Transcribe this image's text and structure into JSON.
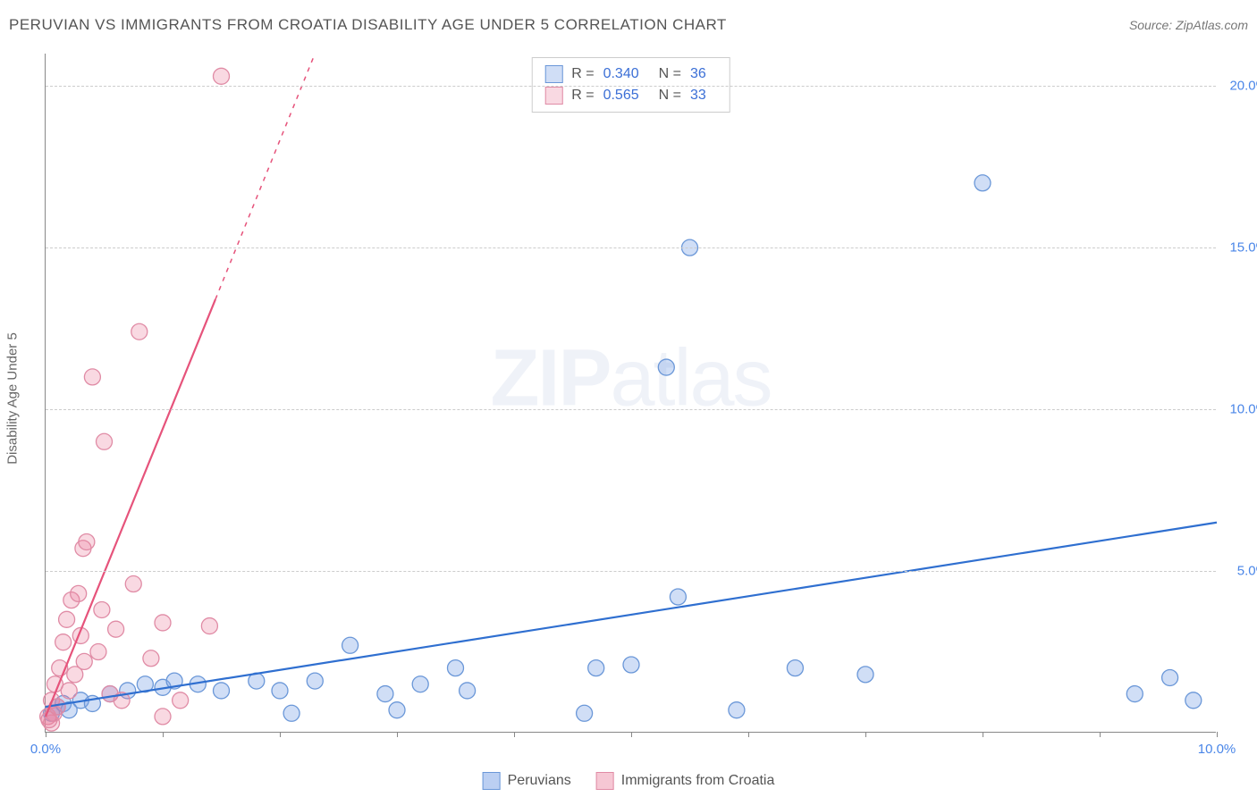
{
  "header": {
    "title": "PERUVIAN VS IMMIGRANTS FROM CROATIA DISABILITY AGE UNDER 5 CORRELATION CHART",
    "source": "Source: ZipAtlas.com"
  },
  "chart": {
    "type": "scatter",
    "watermark": "ZIPatlas",
    "y_axis_label": "Disability Age Under 5",
    "background_color": "#ffffff",
    "grid_color": "#cccccc",
    "axis_color": "#888888",
    "xlim": [
      0,
      10
    ],
    "ylim": [
      0,
      21
    ],
    "x_ticks": [
      0,
      1,
      2,
      3,
      4,
      5,
      6,
      7,
      8,
      9,
      10
    ],
    "x_tick_labels": {
      "0": "0.0%",
      "10": "10.0%"
    },
    "y_ticks": [
      5,
      10,
      15,
      20
    ],
    "y_tick_labels": {
      "5": "5.0%",
      "10": "10.0%",
      "15": "15.0%",
      "20": "20.0%"
    },
    "marker_radius": 9,
    "series": [
      {
        "name": "Peruvians",
        "color_fill": "rgba(120,160,230,0.35)",
        "color_stroke": "#6a97d8",
        "line_color": "#2f6fd0",
        "line_width": 2.2,
        "R": "0.340",
        "N": "36",
        "trend": {
          "x1": 0,
          "y1": 0.8,
          "x2": 10,
          "y2": 6.5
        },
        "points": [
          {
            "x": 0.05,
            "y": 0.6
          },
          {
            "x": 0.1,
            "y": 0.8
          },
          {
            "x": 0.15,
            "y": 0.9
          },
          {
            "x": 0.2,
            "y": 0.7
          },
          {
            "x": 0.3,
            "y": 1.0
          },
          {
            "x": 0.4,
            "y": 0.9
          },
          {
            "x": 0.55,
            "y": 1.2
          },
          {
            "x": 0.7,
            "y": 1.3
          },
          {
            "x": 0.85,
            "y": 1.5
          },
          {
            "x": 1.0,
            "y": 1.4
          },
          {
            "x": 1.1,
            "y": 1.6
          },
          {
            "x": 1.3,
            "y": 1.5
          },
          {
            "x": 1.5,
            "y": 1.3
          },
          {
            "x": 1.8,
            "y": 1.6
          },
          {
            "x": 2.0,
            "y": 1.3
          },
          {
            "x": 2.1,
            "y": 0.6
          },
          {
            "x": 2.3,
            "y": 1.6
          },
          {
            "x": 2.6,
            "y": 2.7
          },
          {
            "x": 2.9,
            "y": 1.2
          },
          {
            "x": 3.0,
            "y": 0.7
          },
          {
            "x": 3.2,
            "y": 1.5
          },
          {
            "x": 3.5,
            "y": 2.0
          },
          {
            "x": 3.6,
            "y": 1.3
          },
          {
            "x": 4.6,
            "y": 0.6
          },
          {
            "x": 4.7,
            "y": 2.0
          },
          {
            "x": 5.0,
            "y": 2.1
          },
          {
            "x": 5.3,
            "y": 11.3
          },
          {
            "x": 5.4,
            "y": 4.2
          },
          {
            "x": 5.5,
            "y": 15.0
          },
          {
            "x": 5.9,
            "y": 0.7
          },
          {
            "x": 6.4,
            "y": 2.0
          },
          {
            "x": 7.0,
            "y": 1.8
          },
          {
            "x": 8.0,
            "y": 17.0
          },
          {
            "x": 9.3,
            "y": 1.2
          },
          {
            "x": 9.6,
            "y": 1.7
          },
          {
            "x": 9.8,
            "y": 1.0
          }
        ]
      },
      {
        "name": "Immigrants from Croatia",
        "color_fill": "rgba(235,130,160,0.30)",
        "color_stroke": "#e08ba5",
        "line_color": "#e6537b",
        "line_width": 2.2,
        "R": "0.565",
        "N": "33",
        "trend": {
          "x1": 0,
          "y1": 0.5,
          "x2": 2.3,
          "y2": 21.0
        },
        "trend_dash": {
          "x1": 1.45,
          "y1": 13.4,
          "x2": 2.3,
          "y2": 21.0
        },
        "trend_solid_end": {
          "x": 1.45,
          "y": 13.4
        },
        "points": [
          {
            "x": 0.02,
            "y": 0.5
          },
          {
            "x": 0.05,
            "y": 1.0
          },
          {
            "x": 0.08,
            "y": 1.5
          },
          {
            "x": 0.1,
            "y": 0.8
          },
          {
            "x": 0.12,
            "y": 2.0
          },
          {
            "x": 0.15,
            "y": 2.8
          },
          {
            "x": 0.18,
            "y": 3.5
          },
          {
            "x": 0.2,
            "y": 1.3
          },
          {
            "x": 0.22,
            "y": 4.1
          },
          {
            "x": 0.28,
            "y": 4.3
          },
          {
            "x": 0.3,
            "y": 3.0
          },
          {
            "x": 0.32,
            "y": 5.7
          },
          {
            "x": 0.35,
            "y": 5.9
          },
          {
            "x": 0.4,
            "y": 11.0
          },
          {
            "x": 0.45,
            "y": 2.5
          },
          {
            "x": 0.5,
            "y": 9.0
          },
          {
            "x": 0.55,
            "y": 1.2
          },
          {
            "x": 0.6,
            "y": 3.2
          },
          {
            "x": 0.65,
            "y": 1.0
          },
          {
            "x": 0.75,
            "y": 4.6
          },
          {
            "x": 0.8,
            "y": 12.4
          },
          {
            "x": 0.9,
            "y": 2.3
          },
          {
            "x": 1.0,
            "y": 3.4
          },
          {
            "x": 1.0,
            "y": 0.5
          },
          {
            "x": 1.15,
            "y": 1.0
          },
          {
            "x": 1.4,
            "y": 3.3
          },
          {
            "x": 1.5,
            "y": 20.3
          },
          {
            "x": 0.05,
            "y": 0.3
          },
          {
            "x": 0.07,
            "y": 0.6
          },
          {
            "x": 0.03,
            "y": 0.4
          },
          {
            "x": 0.25,
            "y": 1.8
          },
          {
            "x": 0.33,
            "y": 2.2
          },
          {
            "x": 0.48,
            "y": 3.8
          }
        ]
      }
    ]
  },
  "legend_bottom": [
    {
      "label": "Peruvians",
      "fill": "rgba(120,160,230,0.5)",
      "stroke": "#6a97d8"
    },
    {
      "label": "Immigrants from Croatia",
      "fill": "rgba(235,130,160,0.45)",
      "stroke": "#e08ba5"
    }
  ]
}
